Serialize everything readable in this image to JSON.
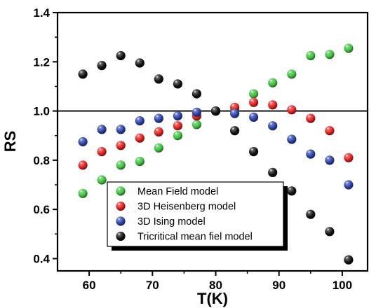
{
  "chart_data": {
    "type": "scatter",
    "xlabel": "T(K)",
    "ylabel": "RS",
    "xlim": [
      55,
      104
    ],
    "ylim": [
      0.35,
      1.4
    ],
    "xticks": [
      60,
      70,
      80,
      90,
      100
    ],
    "yticks": [
      0.4,
      0.6,
      0.8,
      1.0,
      1.2,
      1.4
    ],
    "xtick_labels": [
      "60",
      "70",
      "80",
      "90",
      "100"
    ],
    "ytick_labels": [
      "0.4",
      "0.6",
      "0.8",
      "1.0",
      "1.2",
      "1.4"
    ],
    "reference_line_y": 1.0,
    "grid": false,
    "legend_position": "bottom-left",
    "series": [
      {
        "name": "Mean Field model",
        "color": "#3fbf3f",
        "x": [
          59,
          62,
          65,
          68,
          71,
          74,
          77,
          80,
          83,
          86,
          89,
          92,
          95,
          98,
          101
        ],
        "y": [
          0.665,
          0.72,
          0.78,
          0.795,
          0.85,
          0.9,
          0.945,
          1.0,
          1.01,
          1.07,
          1.115,
          1.15,
          1.225,
          1.23,
          1.255
        ]
      },
      {
        "name": "3D Heisenberg model",
        "color": "#e01e1e",
        "x": [
          59,
          62,
          65,
          68,
          71,
          74,
          77,
          80,
          83,
          86,
          89,
          92,
          95,
          98,
          101
        ],
        "y": [
          0.78,
          0.835,
          0.86,
          0.89,
          0.915,
          0.94,
          0.98,
          1.0,
          1.015,
          1.035,
          1.025,
          1.005,
          0.97,
          0.92,
          0.81
        ]
      },
      {
        "name": "3D Ising model",
        "color": "#2a40a8",
        "x": [
          59,
          62,
          65,
          68,
          71,
          74,
          77,
          80,
          83,
          86,
          89,
          92,
          95,
          98,
          101
        ],
        "y": [
          0.875,
          0.925,
          0.925,
          0.96,
          0.97,
          0.98,
          0.995,
          1.0,
          0.99,
          0.975,
          0.94,
          0.885,
          0.825,
          0.8,
          0.7
        ]
      },
      {
        "name": "Tricritical mean fiel model",
        "color": "#111111",
        "x": [
          59,
          62,
          65,
          68,
          71,
          74,
          77,
          80,
          83,
          86,
          89,
          92,
          95,
          98,
          101
        ],
        "y": [
          1.15,
          1.185,
          1.225,
          1.195,
          1.13,
          1.11,
          1.07,
          1.0,
          0.92,
          0.835,
          0.75,
          0.675,
          0.58,
          0.51,
          0.395
        ]
      }
    ]
  }
}
